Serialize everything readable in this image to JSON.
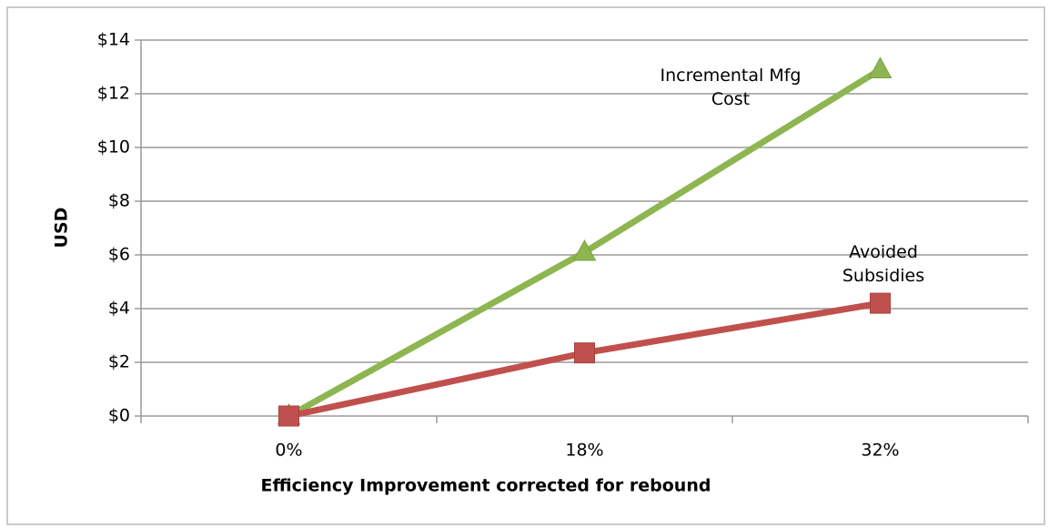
{
  "chart_data": {
    "type": "line",
    "x_label": "Efficiency Improvement corrected for rebound",
    "y_label": "USD",
    "categories": [
      "0%",
      "18%",
      "32%"
    ],
    "series": [
      {
        "name": "Incremental Mfg Cost",
        "color": "#8db651",
        "marker": "triangle",
        "values": [
          0,
          6.1,
          12.9
        ]
      },
      {
        "name": "Avoided Subsidies",
        "color": "#c0504d",
        "marker": "square",
        "values": [
          0,
          2.35,
          4.2
        ]
      }
    ],
    "ylim": [
      0,
      14
    ],
    "yticks": [
      {
        "value": 0,
        "label": "$0"
      },
      {
        "value": 2,
        "label": "$2"
      },
      {
        "value": 4,
        "label": "$4"
      },
      {
        "value": 6,
        "label": "$6"
      },
      {
        "value": 8,
        "label": "$8"
      },
      {
        "value": 10,
        "label": "$10"
      },
      {
        "value": 12,
        "label": "$12"
      },
      {
        "value": 14,
        "label": "$14"
      }
    ],
    "grid": true
  }
}
